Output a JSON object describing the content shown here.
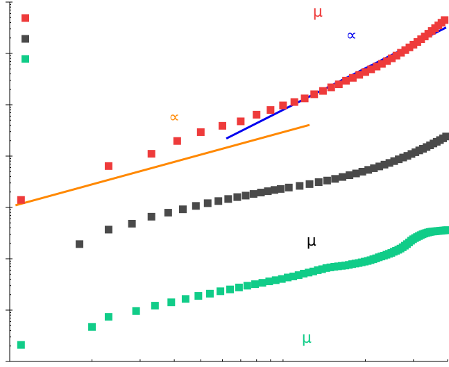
{
  "chart_data": {
    "type": "scatter",
    "x_scale": "log",
    "y_scale": "log",
    "grid": false,
    "legend_placement": "top-left",
    "xlim": [
      1,
      40
    ],
    "ylim": [
      1e-06,
      10
    ],
    "series": [
      {
        "color": "#ee3b3b",
        "marker": "square",
        "x": [
          1.1,
          2.3,
          3.3,
          4.1,
          5.0,
          6.0,
          7.0,
          8.0,
          9.0,
          10.0,
          11.0,
          12.0,
          13.0,
          14.0,
          15.0,
          16.0,
          17.0,
          18.0,
          19.0,
          20.0,
          21.0,
          22.0,
          23.0,
          24.0,
          25.0,
          26.0,
          27.0,
          28.0,
          29.0,
          30.0,
          31.0,
          32.0,
          33.0,
          34.0,
          35.0,
          36.0,
          37.0,
          38.0,
          39.0
        ],
        "y": [
          0.0014,
          0.0064,
          0.0111,
          0.0197,
          0.0293,
          0.0389,
          0.0475,
          0.064,
          0.079,
          0.097,
          0.113,
          0.133,
          0.16,
          0.186,
          0.218,
          0.25,
          0.294,
          0.334,
          0.383,
          0.434,
          0.49,
          0.554,
          0.626,
          0.709,
          0.802,
          0.907,
          1.03,
          1.16,
          1.31,
          1.48,
          1.67,
          1.89,
          2.14,
          2.42,
          2.74,
          3.1,
          3.51,
          3.96,
          4.46
        ]
      },
      {
        "color": "#4a4a4a",
        "marker": "square",
        "x": [
          1.8,
          2.3,
          2.8,
          3.3,
          3.8,
          4.3,
          4.8,
          5.3,
          5.8,
          6.3,
          6.8,
          7.3,
          7.8,
          8.3,
          8.8,
          9.3,
          9.8,
          10.5,
          11.5,
          12.5,
          13.5,
          14.5,
          15.5,
          16.5,
          17.5,
          18.5,
          19.5,
          20.5,
          21.5,
          22.5,
          23.5,
          24.5,
          25.5,
          26.5,
          27.5,
          28.5,
          29.5,
          30.5,
          31.5,
          32.5,
          33.5,
          34.5,
          35.5,
          36.5,
          37.5,
          38.5,
          39.5
        ],
        "y": [
          0.000193,
          0.00037,
          0.000482,
          0.00066,
          0.00079,
          0.00092,
          0.00107,
          0.00121,
          0.00133,
          0.00146,
          0.00159,
          0.0017,
          0.00183,
          0.00195,
          0.00207,
          0.00219,
          0.00229,
          0.00244,
          0.00263,
          0.00285,
          0.00311,
          0.00334,
          0.0036,
          0.00392,
          0.00425,
          0.00459,
          0.00497,
          0.00539,
          0.00581,
          0.00629,
          0.00682,
          0.00736,
          0.00799,
          0.00866,
          0.00938,
          0.0101,
          0.011,
          0.0119,
          0.0129,
          0.0139,
          0.015,
          0.0162,
          0.0176,
          0.019,
          0.0205,
          0.0222,
          0.0241
        ]
      },
      {
        "color": "#11cc88",
        "marker": "square",
        "x": [
          1.1,
          2.0,
          2.3,
          2.9,
          3.4,
          3.9,
          4.4,
          4.9,
          5.4,
          5.9,
          6.4,
          6.9,
          7.4,
          7.9,
          8.4,
          8.9,
          9.4,
          9.9,
          10.4,
          10.9,
          11.4,
          11.9,
          12.4,
          12.9,
          13.4,
          13.9,
          14.4,
          14.9,
          15.4,
          15.9,
          16.4,
          16.9,
          17.4,
          17.9,
          18.4,
          18.9,
          19.4,
          19.9,
          20.4,
          20.9,
          21.4,
          21.9,
          22.4,
          22.9,
          23.4,
          23.9,
          24.4,
          24.9,
          25.4,
          25.9,
          26.4,
          26.9,
          27.4,
          27.9,
          28.4,
          28.9,
          29.4,
          29.9,
          30.4,
          30.9,
          31.4,
          31.9,
          32.4,
          32.9,
          33.4,
          33.9,
          34.4,
          34.9,
          35.4,
          35.9,
          36.4,
          36.9,
          37.4,
          37.9,
          38.4,
          38.9,
          39.4,
          39.9
        ],
        "y": [
          2.1e-06,
          4.7e-06,
          7.4e-06,
          9.6e-06,
          1.22e-05,
          1.42e-05,
          1.65e-05,
          1.89e-05,
          2.09e-05,
          2.33e-05,
          2.53e-05,
          2.76e-05,
          2.99e-05,
          3.2e-05,
          3.4e-05,
          3.63e-05,
          3.83e-05,
          4.04e-05,
          4.32e-05,
          4.53e-05,
          4.8e-05,
          5.13e-05,
          5.39e-05,
          5.66e-05,
          6e-05,
          6.27e-05,
          6.6e-05,
          6.8e-05,
          7e-05,
          7.13e-05,
          7.27e-05,
          7.4e-05,
          7.6e-05,
          7.87e-05,
          8.07e-05,
          8.27e-05,
          8.53e-05,
          8.8e-05,
          9.07e-05,
          9.4e-05,
          9.8e-05,
          0.000102,
          0.000107,
          0.000111,
          0.000115,
          0.00012,
          0.000125,
          0.00013,
          0.000137,
          0.000143,
          0.00015,
          0.000158,
          0.000168,
          0.00018,
          0.000193,
          0.000208,
          0.000225,
          0.00024,
          0.000253,
          0.000265,
          0.000277,
          0.000289,
          0.0003,
          0.00031,
          0.000318,
          0.000325,
          0.000332,
          0.000337,
          0.00034,
          0.000342,
          0.000345,
          0.000348,
          0.00035,
          0.000352,
          0.000355,
          0.000357,
          0.00036,
          0.000362
        ]
      }
    ],
    "fit_lines": [
      {
        "color": "#ff8800",
        "x": [
          1.05,
          12.5
        ],
        "y": [
          0.0011,
          0.0405
        ]
      },
      {
        "color": "#0000ee",
        "x": [
          6.2,
          39.5
        ],
        "y": [
          0.022,
          3.2
        ]
      }
    ],
    "annotations": [
      {
        "text": "µ",
        "color": "#ee3b3b",
        "x": 13.4,
        "y": 6.31
      },
      {
        "text": "∝",
        "color": "#0000ee",
        "x": 17.8,
        "y": 2.19
      },
      {
        "text": "∝",
        "color": "#ff8800",
        "x": 4.0,
        "y": 0.055
      },
      {
        "text": "µ",
        "color": "#000000",
        "x": 12.7,
        "y": 0.000218
      },
      {
        "text": "µ",
        "color": "#11cc88",
        "x": 12.2,
        "y": 2.8e-06
      }
    ]
  }
}
